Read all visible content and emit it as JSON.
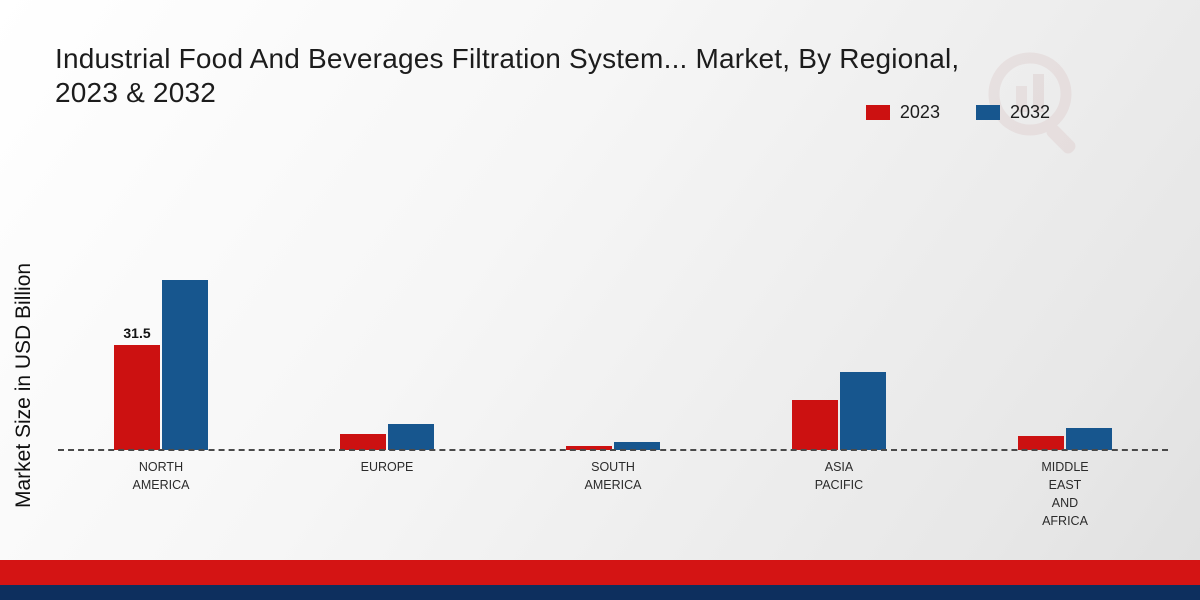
{
  "title": "Industrial Food And Beverages Filtration System... Market, By Regional,\n2023 & 2032",
  "y_axis_label": "Market Size in USD Billion",
  "legend": [
    {
      "label": "2023",
      "color": "#cc1111"
    },
    {
      "label": "2032",
      "color": "#17568e"
    }
  ],
  "footer": {
    "red_band_color": "#d41414",
    "navy_band_color": "#0d2f5e"
  },
  "chart_data": {
    "type": "bar",
    "title": "Industrial Food And Beverages Filtration System... Market, By Regional, 2023 & 2032",
    "ylabel": "Market Size in USD Billion",
    "xlabel": "",
    "categories": [
      "NORTH\nAMERICA",
      "EUROPE",
      "SOUTH\nAMERICA",
      "ASIA\nPACIFIC",
      "MIDDLE\nEAST\nAND\nAFRICA"
    ],
    "series": [
      {
        "name": "2023",
        "color": "#cc1111",
        "values": [
          31.5,
          4.8,
          1.2,
          15.0,
          4.2
        ],
        "labels": [
          "31.5",
          "",
          "",
          "",
          ""
        ]
      },
      {
        "name": "2032",
        "color": "#17568e",
        "values": [
          51.0,
          7.8,
          2.4,
          23.5,
          6.6
        ],
        "labels": [
          "",
          "",
          "",
          "",
          ""
        ]
      }
    ],
    "ylim": [
      0,
      90
    ],
    "grid": false,
    "baseline_style": "dashed",
    "legend_position": "top-right"
  }
}
